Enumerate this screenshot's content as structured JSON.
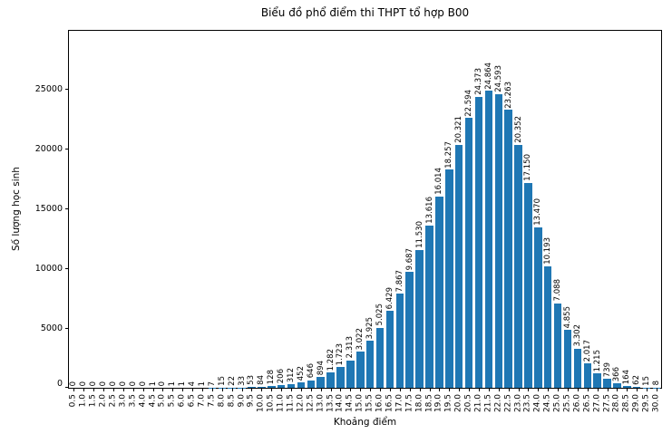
{
  "chart_data": {
    "type": "bar",
    "title": "Biểu đồ phổ điểm thi THPT tổ hợp B00",
    "xlabel": "Khoảng điểm",
    "ylabel": "Số lượng học sinh",
    "categories": [
      "0.5",
      "1.0",
      "1.5",
      "2.0",
      "2.5",
      "3.0",
      "3.5",
      "4.0",
      "4.5",
      "5.0",
      "5.5",
      "6.0",
      "6.5",
      "7.0",
      "7.5",
      "8.0",
      "8.5",
      "9.0",
      "9.5",
      "10.0",
      "10.5",
      "11.0",
      "11.5",
      "12.0",
      "12.5",
      "13.0",
      "13.5",
      "14.0",
      "14.5",
      "15.0",
      "15.5",
      "16.0",
      "16.5",
      "17.0",
      "17.5",
      "18.0",
      "18.5",
      "19.0",
      "19.5",
      "20.0",
      "20.5",
      "21.0",
      "21.5",
      "22.0",
      "22.5",
      "23.0",
      "23.5",
      "24.0",
      "24.5",
      "25.0",
      "25.5",
      "26.0",
      "26.5",
      "27.0",
      "27.5",
      "28.0",
      "28.5",
      "29.0",
      "29.5",
      "30.0"
    ],
    "values": [
      0,
      0,
      0,
      0,
      0,
      0,
      0,
      0,
      1,
      0,
      1,
      1,
      4,
      1,
      7,
      15,
      22,
      33,
      53,
      84,
      128,
      206,
      312,
      452,
      646,
      894,
      1282,
      1723,
      2313,
      3022,
      3925,
      5025,
      6429,
      7867,
      9687,
      11530,
      13616,
      16014,
      18257,
      20321,
      22594,
      24373,
      24864,
      24593,
      23263,
      20352,
      17150,
      13470,
      10193,
      7088,
      4855,
      3302,
      2017,
      1215,
      739,
      366,
      164,
      62,
      15,
      8
    ],
    "bar_labels": [
      "0",
      "0",
      "0",
      "0",
      "0",
      "0",
      "0",
      "0",
      "1",
      "0",
      "1",
      "1",
      "4",
      "1",
      "7",
      "15",
      "22",
      "33",
      "53",
      "84",
      "128",
      "206",
      "312",
      "452",
      "646",
      "894",
      "1.282",
      "1.723",
      "2.313",
      "3.022",
      "3.925",
      "5.025",
      "6.429",
      "7.867",
      "9.687",
      "11.530",
      "13.616",
      "16.014",
      "18.257",
      "20.321",
      "22.594",
      "24.373",
      "24.864",
      "24.593",
      "23.263",
      "20.352",
      "17.150",
      "13.470",
      "10.193",
      "7.088",
      "4.855",
      "3.302",
      "2.017",
      "1.215",
      "739",
      "366",
      "164",
      "62",
      "15",
      "8"
    ],
    "yticks": [
      0,
      5000,
      10000,
      15000,
      20000,
      25000
    ],
    "ytick_labels": [
      "0",
      "5000",
      "10000",
      "15000",
      "20000",
      "25000"
    ],
    "ylim": [
      0,
      29900
    ],
    "bar_color": "#1f77b4",
    "text_color": "#000000",
    "grid": false,
    "legend_position": "none"
  }
}
